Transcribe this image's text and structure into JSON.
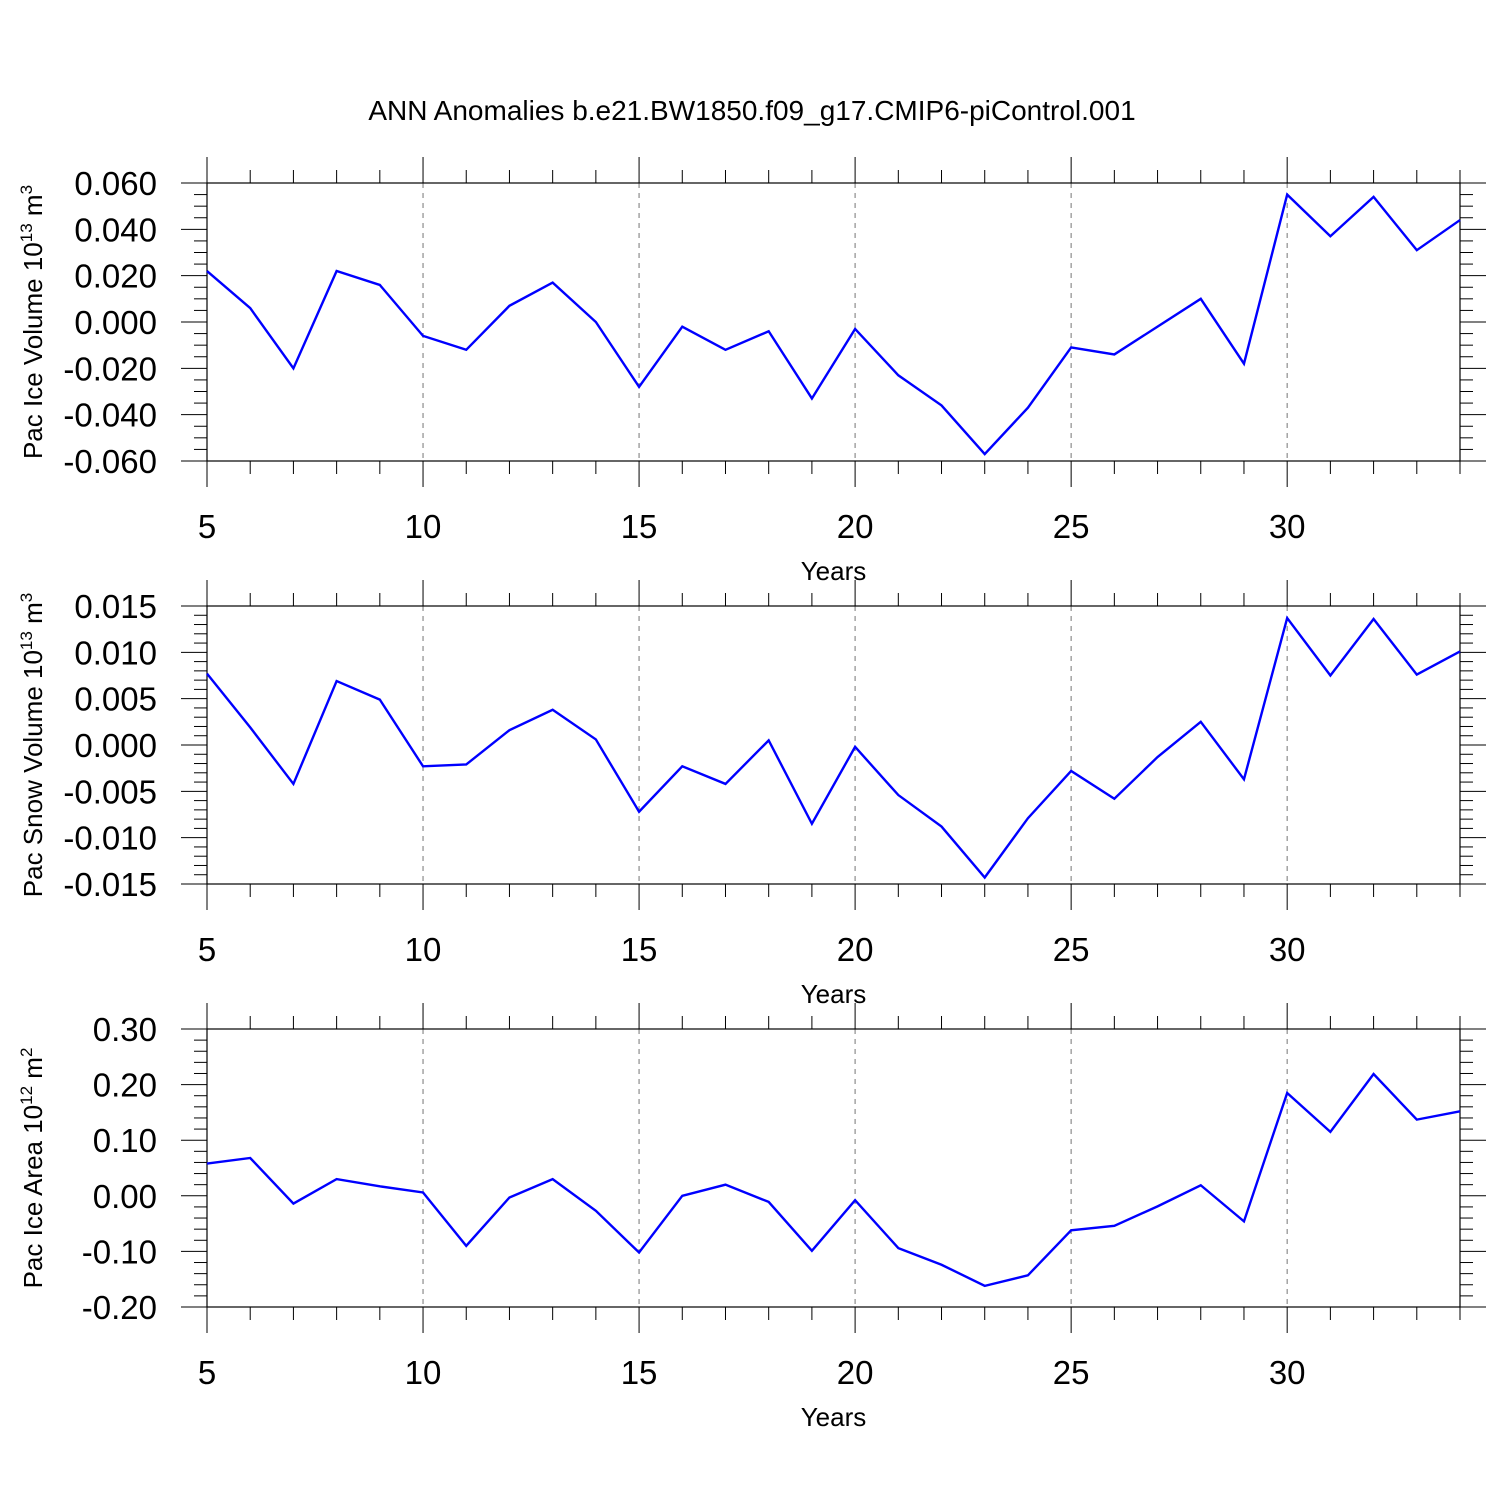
{
  "figure": {
    "title": "ANN Anomalies b.e21.BW1850.f09_g17.CMIP6-piControl.001"
  },
  "chart_data": [
    {
      "type": "line",
      "xlabel": "Years",
      "ylabel": "Pac Ice Volume 10",
      "ylabel_exp": "13",
      "ylabel_unit": " m",
      "ylabel_unit_exp": "3",
      "xlim": [
        5,
        34
      ],
      "ylim": [
        -0.06,
        0.06
      ],
      "xticks": [
        5,
        10,
        15,
        20,
        25,
        30
      ],
      "xtick_labels": [
        "5",
        "10",
        "15",
        "20",
        "25",
        "30"
      ],
      "yticks": [
        -0.06,
        -0.04,
        -0.02,
        0.0,
        0.02,
        0.04,
        0.06
      ],
      "ytick_labels": [
        "-0.060",
        "-0.040",
        "-0.020",
        "0.000",
        "0.020",
        "0.040",
        "0.060"
      ],
      "y_minor_step": 0.005,
      "grid": "vertical dashed at major x ticks",
      "series": [
        {
          "color": "#0000ff",
          "x": [
            5,
            6,
            7,
            8,
            9,
            10,
            11,
            12,
            13,
            14,
            15,
            16,
            17,
            18,
            19,
            20,
            21,
            22,
            23,
            24,
            25,
            26,
            27,
            28,
            29,
            30,
            31,
            32,
            33,
            34
          ],
          "y": [
            0.022,
            0.006,
            -0.02,
            0.022,
            0.016,
            -0.006,
            -0.012,
            0.007,
            0.017,
            0.0,
            -0.028,
            -0.002,
            -0.012,
            -0.004,
            -0.033,
            -0.003,
            -0.023,
            -0.036,
            -0.057,
            -0.037,
            -0.011,
            -0.014,
            -0.002,
            0.01,
            -0.018,
            0.055,
            0.037,
            0.054,
            0.031,
            0.044
          ]
        }
      ]
    },
    {
      "type": "line",
      "xlabel": "Years",
      "ylabel": "Pac Snow Volume 10",
      "ylabel_exp": "13",
      "ylabel_unit": " m",
      "ylabel_unit_exp": "3",
      "xlim": [
        5,
        34
      ],
      "ylim": [
        -0.015,
        0.015
      ],
      "xticks": [
        5,
        10,
        15,
        20,
        25,
        30
      ],
      "xtick_labels": [
        "5",
        "10",
        "15",
        "20",
        "25",
        "30"
      ],
      "yticks": [
        -0.015,
        -0.01,
        -0.005,
        0.0,
        0.005,
        0.01,
        0.015
      ],
      "ytick_labels": [
        "-0.015",
        "-0.010",
        "-0.005",
        "0.000",
        "0.005",
        "0.010",
        "0.015"
      ],
      "y_minor_step": 0.001,
      "grid": "vertical dashed at major x ticks",
      "series": [
        {
          "color": "#0000ff",
          "x": [
            5,
            6,
            7,
            8,
            9,
            10,
            11,
            12,
            13,
            14,
            15,
            16,
            17,
            18,
            19,
            20,
            21,
            22,
            23,
            24,
            25,
            26,
            27,
            28,
            29,
            30,
            31,
            32,
            33,
            34
          ],
          "y": [
            0.0077,
            0.0019,
            -0.0042,
            0.0069,
            0.0049,
            -0.0023,
            -0.0021,
            0.0016,
            0.0038,
            0.0006,
            -0.0072,
            -0.0023,
            -0.0042,
            0.0005,
            -0.0085,
            -0.0002,
            -0.0054,
            -0.0088,
            -0.0143,
            -0.0079,
            -0.0028,
            -0.0058,
            -0.0013,
            0.0025,
            -0.0037,
            0.0137,
            0.0075,
            0.0136,
            0.0076,
            0.0101
          ]
        }
      ]
    },
    {
      "type": "line",
      "xlabel": "Years",
      "ylabel": "Pac Ice Area 10",
      "ylabel_exp": "12",
      "ylabel_unit": " m",
      "ylabel_unit_exp": "2",
      "xlim": [
        5,
        34
      ],
      "ylim": [
        -0.2,
        0.3
      ],
      "xticks": [
        5,
        10,
        15,
        20,
        25,
        30
      ],
      "xtick_labels": [
        "5",
        "10",
        "15",
        "20",
        "25",
        "30"
      ],
      "yticks": [
        -0.2,
        -0.1,
        0.0,
        0.1,
        0.2,
        0.3
      ],
      "ytick_labels": [
        "-0.20",
        "-0.10",
        "0.00",
        "0.10",
        "0.20",
        "0.30"
      ],
      "y_minor_step": 0.02,
      "grid": "vertical dashed at major x ticks",
      "series": [
        {
          "color": "#0000ff",
          "x": [
            5,
            6,
            7,
            8,
            9,
            10,
            11,
            12,
            13,
            14,
            15,
            16,
            17,
            18,
            19,
            20,
            21,
            22,
            23,
            24,
            25,
            26,
            27,
            28,
            29,
            30,
            31,
            32,
            33,
            34
          ],
          "y": [
            0.058,
            0.068,
            -0.014,
            0.03,
            0.017,
            0.006,
            -0.09,
            -0.003,
            0.03,
            -0.027,
            -0.102,
            0.0,
            0.02,
            -0.011,
            -0.099,
            -0.008,
            -0.094,
            -0.124,
            -0.162,
            -0.143,
            -0.062,
            -0.054,
            -0.019,
            0.019,
            -0.046,
            0.185,
            0.115,
            0.219,
            0.137,
            0.152
          ]
        }
      ]
    }
  ]
}
